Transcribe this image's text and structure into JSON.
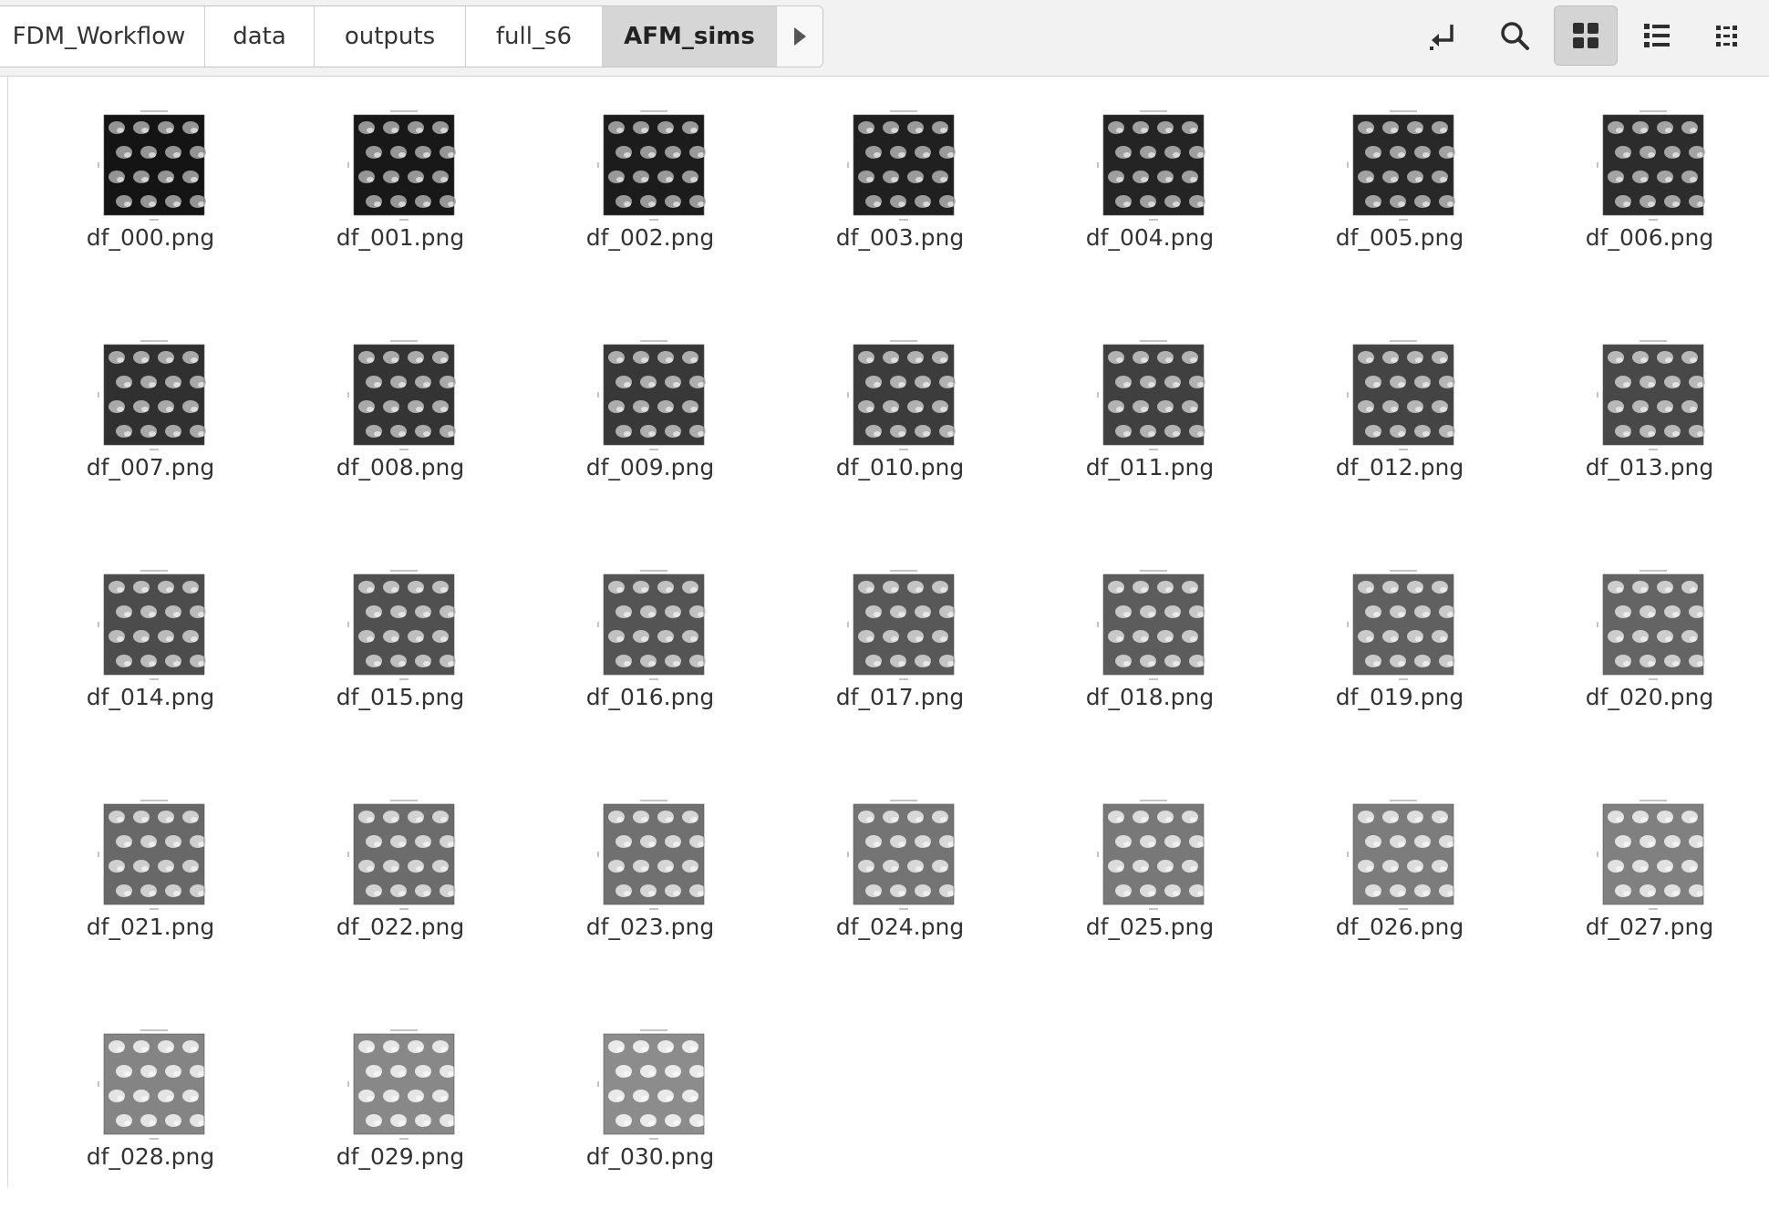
{
  "breadcrumb": {
    "items": [
      {
        "label": "FDM_Workflow",
        "active": false
      },
      {
        "label": "data",
        "active": false
      },
      {
        "label": "outputs",
        "active": false
      },
      {
        "label": "full_s6",
        "active": false
      },
      {
        "label": "AFM_sims",
        "active": true
      }
    ]
  },
  "toolbar": {
    "buttons": [
      {
        "icon": "return-arrow-icon",
        "active": false
      },
      {
        "icon": "search-icon",
        "active": false
      },
      {
        "icon": "grid-view-icon",
        "active": true
      },
      {
        "icon": "list-view-icon",
        "active": false
      },
      {
        "icon": "compact-view-icon",
        "active": false
      }
    ]
  },
  "files": [
    {
      "name": "df_000.png",
      "icon": "image-thumbnail-icon"
    },
    {
      "name": "df_001.png",
      "icon": "image-thumbnail-icon"
    },
    {
      "name": "df_002.png",
      "icon": "image-thumbnail-icon"
    },
    {
      "name": "df_003.png",
      "icon": "image-thumbnail-icon"
    },
    {
      "name": "df_004.png",
      "icon": "image-thumbnail-icon"
    },
    {
      "name": "df_005.png",
      "icon": "image-thumbnail-icon"
    },
    {
      "name": "df_006.png",
      "icon": "image-thumbnail-icon"
    },
    {
      "name": "df_007.png",
      "icon": "image-thumbnail-icon"
    },
    {
      "name": "df_008.png",
      "icon": "image-thumbnail-icon"
    },
    {
      "name": "df_009.png",
      "icon": "image-thumbnail-icon"
    },
    {
      "name": "df_010.png",
      "icon": "image-thumbnail-icon"
    },
    {
      "name": "df_011.png",
      "icon": "image-thumbnail-icon"
    },
    {
      "name": "df_012.png",
      "icon": "image-thumbnail-icon"
    },
    {
      "name": "df_013.png",
      "icon": "image-thumbnail-icon"
    },
    {
      "name": "df_014.png",
      "icon": "image-thumbnail-icon"
    },
    {
      "name": "df_015.png",
      "icon": "image-thumbnail-icon"
    },
    {
      "name": "df_016.png",
      "icon": "image-thumbnail-icon"
    },
    {
      "name": "df_017.png",
      "icon": "image-thumbnail-icon"
    },
    {
      "name": "df_018.png",
      "icon": "image-thumbnail-icon"
    },
    {
      "name": "df_019.png",
      "icon": "image-thumbnail-icon"
    },
    {
      "name": "df_020.png",
      "icon": "image-thumbnail-icon"
    },
    {
      "name": "df_021.png",
      "icon": "image-thumbnail-icon"
    },
    {
      "name": "df_022.png",
      "icon": "image-thumbnail-icon"
    },
    {
      "name": "df_023.png",
      "icon": "image-thumbnail-icon"
    },
    {
      "name": "df_024.png",
      "icon": "image-thumbnail-icon"
    },
    {
      "name": "df_025.png",
      "icon": "image-thumbnail-icon"
    },
    {
      "name": "df_026.png",
      "icon": "image-thumbnail-icon"
    },
    {
      "name": "df_027.png",
      "icon": "image-thumbnail-icon"
    },
    {
      "name": "df_028.png",
      "icon": "image-thumbnail-icon"
    },
    {
      "name": "df_029.png",
      "icon": "image-thumbnail-icon"
    },
    {
      "name": "df_030.png",
      "icon": "image-thumbnail-icon"
    }
  ]
}
